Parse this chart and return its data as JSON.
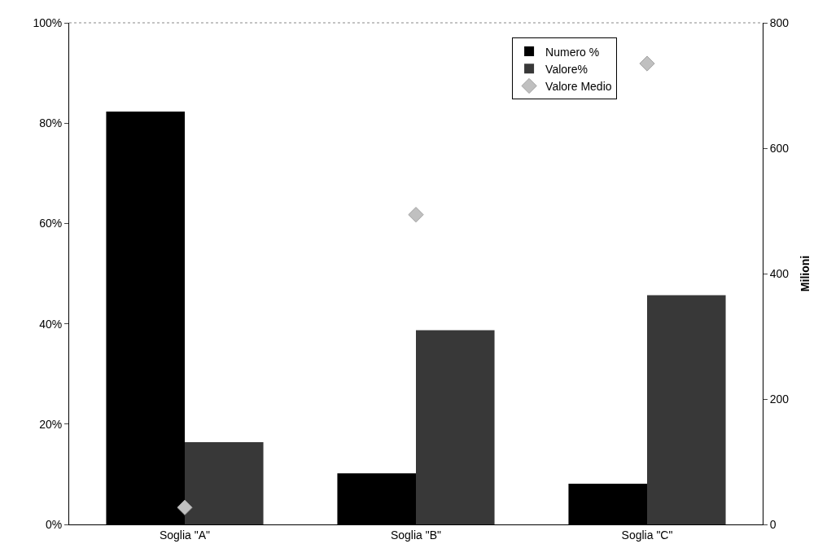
{
  "chart_data": {
    "type": "bar",
    "categories": [
      "Soglia \"A\"",
      "Soglia \"B\"",
      "Soglia \"C\""
    ],
    "series": [
      {
        "name": "Numero %",
        "color": "#000000",
        "values": [
          82.3,
          10.2,
          8.1
        ]
      },
      {
        "name": "Valore%",
        "color": "#383838",
        "values": [
          16.4,
          38.7,
          45.7
        ]
      },
      {
        "name": "Valore Medio",
        "color": "#c0c0c0",
        "type": "scatter",
        "axis": "y2",
        "marker": "diamond",
        "values": [
          27,
          494,
          735
        ]
      }
    ],
    "ylim": [
      0,
      100
    ],
    "yticks": [
      {
        "value": 0,
        "label": "0%"
      },
      {
        "value": 20,
        "label": "20%"
      },
      {
        "value": 40,
        "label": "40%"
      },
      {
        "value": 60,
        "label": "60%"
      },
      {
        "value": 80,
        "label": "80%"
      },
      {
        "value": 100,
        "label": "100%"
      }
    ],
    "y2lim": [
      0,
      800
    ],
    "y2ticks": [
      0,
      200,
      400,
      600,
      800
    ],
    "y2label": "Milioni",
    "legend": "top right"
  }
}
